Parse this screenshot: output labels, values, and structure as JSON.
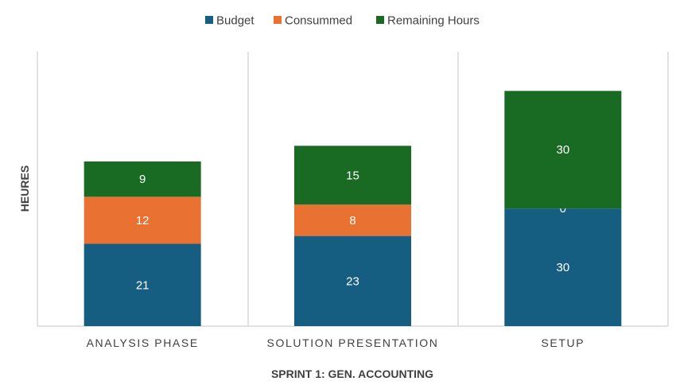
{
  "chart_data": {
    "type": "bar",
    "stacked": true,
    "categories": [
      "ANALYSIS PHASE",
      "SOLUTION PRESENTATION",
      "SETUP"
    ],
    "series": [
      {
        "name": "Budget",
        "color": "#165E81",
        "values": [
          21,
          23,
          30
        ]
      },
      {
        "name": "Consummed",
        "color": "#E97132",
        "values": [
          12,
          8,
          0
        ]
      },
      {
        "name": "Remaining Hours",
        "color": "#196B24",
        "values": [
          9,
          15,
          30
        ]
      }
    ],
    "title": "",
    "xlabel": "SPRINT 1: GEN. ACCOUNTING",
    "ylabel": "HEURES",
    "ylim": [
      0,
      70
    ],
    "grid": false,
    "legend": "top-center"
  }
}
